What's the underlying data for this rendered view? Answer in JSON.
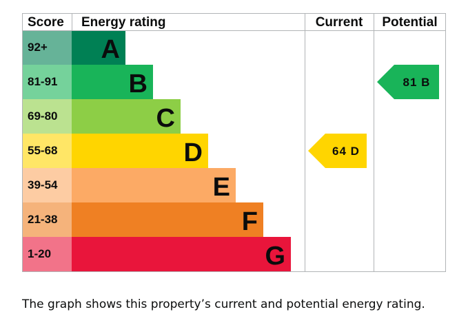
{
  "chart_data": {
    "type": "bar",
    "headers": {
      "score": "Score",
      "rating": "Energy rating",
      "current": "Current",
      "potential": "Potential"
    },
    "bands": [
      {
        "score": "92+",
        "letter": "A",
        "color": "#008054",
        "tint": "#66b398"
      },
      {
        "score": "81-91",
        "letter": "B",
        "color": "#19b459",
        "tint": "#75d29b"
      },
      {
        "score": "69-80",
        "letter": "C",
        "color": "#8dce46",
        "tint": "#bbe290"
      },
      {
        "score": "55-68",
        "letter": "D",
        "color": "#ffd500",
        "tint": "#ffe666"
      },
      {
        "score": "39-54",
        "letter": "E",
        "color": "#fcaa65",
        "tint": "#fdcca3"
      },
      {
        "score": "21-38",
        "letter": "F",
        "color": "#ef8023",
        "tint": "#f5b37b"
      },
      {
        "score": "1-20",
        "letter": "G",
        "color": "#e9153b",
        "tint": "#f27389"
      }
    ],
    "current": {
      "value": 64,
      "letter": "D",
      "label": "64 D",
      "color": "#ffd500"
    },
    "potential": {
      "value": 81,
      "letter": "B",
      "label": "81 B",
      "color": "#19b459"
    }
  },
  "caption": "The graph shows this property’s current and potential energy rating."
}
